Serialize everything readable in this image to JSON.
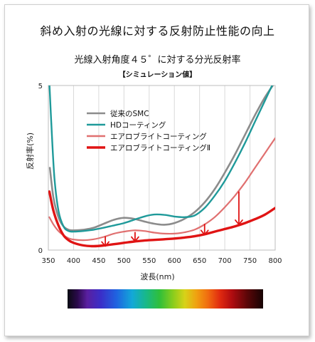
{
  "header": {
    "title": "斜め入射の光線に対する反射防止性能の向上",
    "subtitle": "光線入射角度４５゜に対する分光反射率",
    "note": "【シミュレーション値】"
  },
  "chart_data": {
    "type": "line",
    "xlabel": "波長(nm)",
    "ylabel": "反射率(%)",
    "xlim": [
      350,
      800
    ],
    "ylim": [
      0,
      5
    ],
    "xticks": [
      350,
      400,
      450,
      500,
      550,
      600,
      650,
      700,
      750,
      800
    ],
    "yticks": [
      0,
      5
    ],
    "grid": "vertical",
    "legend_position": "upper-left inside",
    "series": [
      {
        "name": "従来のSMC",
        "color": "#8c8c8c",
        "x": [
          353,
          360,
          370,
          380,
          390,
          400,
          420,
          440,
          460,
          480,
          500,
          520,
          540,
          560,
          580,
          600,
          620,
          640,
          660,
          680,
          700,
          720,
          740,
          760,
          780,
          800
        ],
        "y": [
          2.5,
          1.6,
          1.0,
          0.72,
          0.62,
          0.6,
          0.62,
          0.68,
          0.8,
          0.92,
          0.98,
          0.95,
          0.87,
          0.8,
          0.77,
          0.82,
          0.95,
          1.15,
          1.45,
          1.85,
          2.35,
          2.9,
          3.5,
          4.1,
          4.65,
          5.1
        ]
      },
      {
        "name": "HDコーティング",
        "color": "#1f9a9a",
        "x": [
          352,
          356,
          362,
          370,
          380,
          390,
          400,
          420,
          440,
          460,
          480,
          500,
          520,
          540,
          560,
          580,
          600,
          620,
          640,
          660,
          680,
          700,
          720,
          740,
          760,
          780,
          800
        ],
        "y": [
          5.1,
          3.8,
          2.2,
          1.2,
          0.72,
          0.58,
          0.56,
          0.58,
          0.62,
          0.68,
          0.75,
          0.82,
          0.92,
          1.02,
          1.08,
          1.07,
          1.02,
          1.0,
          1.05,
          1.28,
          1.65,
          2.1,
          2.65,
          3.25,
          3.9,
          4.55,
          5.2
        ]
      },
      {
        "name": "エアロブライトコーティング",
        "color": "#e07070",
        "x": [
          352,
          360,
          370,
          380,
          390,
          400,
          420,
          440,
          460,
          480,
          500,
          520,
          540,
          560,
          580,
          600,
          620,
          640,
          660,
          680,
          700,
          720,
          740,
          760,
          780,
          800
        ],
        "y": [
          1.0,
          0.78,
          0.58,
          0.45,
          0.36,
          0.32,
          0.3,
          0.33,
          0.4,
          0.5,
          0.56,
          0.6,
          0.58,
          0.53,
          0.5,
          0.5,
          0.54,
          0.62,
          0.78,
          1.0,
          1.3,
          1.65,
          2.05,
          2.5,
          2.95,
          3.4
        ]
      },
      {
        "name": "エアロブライトコーティングⅡ",
        "color": "#e01414",
        "x": [
          352,
          360,
          370,
          380,
          390,
          400,
          420,
          440,
          460,
          480,
          500,
          520,
          540,
          560,
          580,
          600,
          620,
          640,
          660,
          680,
          700,
          720,
          740,
          760,
          780,
          800
        ],
        "y": [
          1.78,
          1.2,
          0.75,
          0.45,
          0.3,
          0.22,
          0.14,
          0.12,
          0.14,
          0.18,
          0.22,
          0.26,
          0.29,
          0.31,
          0.33,
          0.35,
          0.38,
          0.42,
          0.48,
          0.56,
          0.64,
          0.72,
          0.82,
          0.94,
          1.08,
          1.28
        ]
      }
    ],
    "annotations": [
      {
        "type": "arrow",
        "x": 463,
        "y_from": 0.42,
        "y_to": 0.12
      },
      {
        "type": "arrow",
        "x": 522,
        "y_from": 0.55,
        "y_to": 0.27
      },
      {
        "type": "arrow",
        "x": 660,
        "y_from": 0.8,
        "y_to": 0.47
      },
      {
        "type": "arrow",
        "x": 728,
        "y_from": 1.78,
        "y_to": 0.78
      }
    ],
    "arrow_color": "#e01414"
  },
  "spectrum_bar": {
    "colors": [
      "#0a0a12",
      "#5a1fa0",
      "#1f63e0",
      "#18b88a",
      "#2fbf3a",
      "#d8d218",
      "#f06a10",
      "#b00c10",
      "#160404"
    ]
  }
}
